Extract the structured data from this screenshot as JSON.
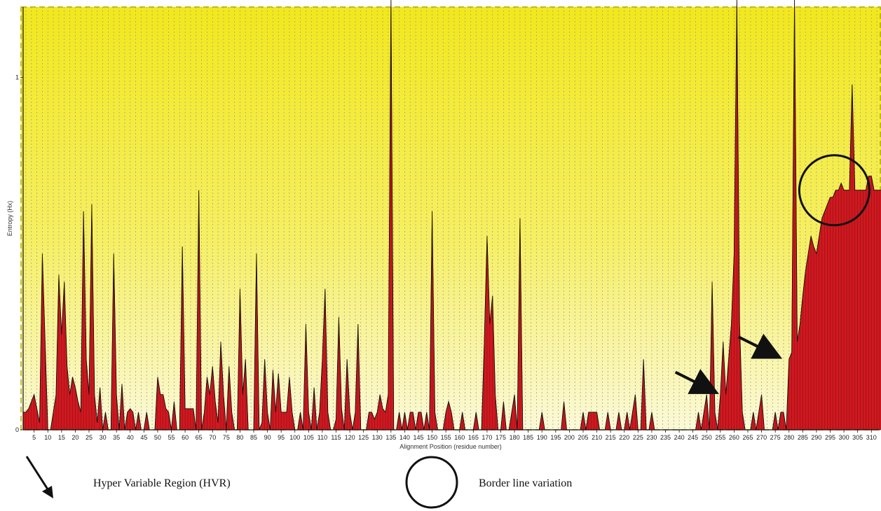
{
  "chart_data": {
    "type": "area",
    "title": "",
    "xlabel": "Alignment Position (residue number)",
    "ylabel": "Entropy (Hx)",
    "xlim": [
      1,
      313
    ],
    "ylim": [
      0,
      1.2
    ],
    "y_ticks": [
      "0",
      "1"
    ],
    "x_ticks": [
      "5",
      "10",
      "15",
      "20",
      "25",
      "30",
      "35",
      "40",
      "45",
      "50",
      "55",
      "60",
      "65",
      "70",
      "75",
      "80",
      "85",
      "90",
      "95",
      "100",
      "105",
      "110",
      "115",
      "120",
      "125",
      "130",
      "135",
      "140",
      "145",
      "150",
      "155",
      "160",
      "165",
      "170",
      "175",
      "180",
      "185",
      "190",
      "195",
      "200",
      "205",
      "210",
      "215",
      "220",
      "225",
      "230",
      "235",
      "240",
      "245",
      "250",
      "255",
      "260",
      "265",
      "270",
      "275",
      "280",
      "285",
      "290",
      "295",
      "300",
      "305",
      "310"
    ],
    "grid": "vertical dotted lines at every 2 positions",
    "background": "yellow-to-white vertical gradient",
    "fill_color": "#d01820",
    "series": [
      {
        "values": [
          0.05,
          0.05,
          0.06,
          0.08,
          0.1,
          0.06,
          0.02,
          0.5,
          0.25,
          0.0,
          0.0,
          0.05,
          0.1,
          0.44,
          0.27,
          0.42,
          0.18,
          0.1,
          0.15,
          0.12,
          0.08,
          0.05,
          0.62,
          0.2,
          0.1,
          0.64,
          0.1,
          0.02,
          0.12,
          0.0,
          0.05,
          0.0,
          0.0,
          0.5,
          0.1,
          0.0,
          0.13,
          0.0,
          0.05,
          0.06,
          0.05,
          0.0,
          0.05,
          0.0,
          0.0,
          0.05,
          0.0,
          0.0,
          0.0,
          0.15,
          0.1,
          0.1,
          0.06,
          0.05,
          0.0,
          0.08,
          0.0,
          0.0,
          0.52,
          0.06,
          0.06,
          0.06,
          0.06,
          0.0,
          0.68,
          0.0,
          0.05,
          0.15,
          0.1,
          0.18,
          0.08,
          0.02,
          0.25,
          0.1,
          0.0,
          0.18,
          0.05,
          0.0,
          0.0,
          0.4,
          0.1,
          0.2,
          0.0,
          0.0,
          0.0,
          0.5,
          0.0,
          0.02,
          0.2,
          0.05,
          0.0,
          0.17,
          0.05,
          0.16,
          0.05,
          0.05,
          0.05,
          0.15,
          0.05,
          0.0,
          0.0,
          0.05,
          0.0,
          0.3,
          0.05,
          0.0,
          0.12,
          0.0,
          0.05,
          0.2,
          0.4,
          0.05,
          0.0,
          0.0,
          0.03,
          0.32,
          0.06,
          0.0,
          0.2,
          0.05,
          0.0,
          0.05,
          0.3,
          0.0,
          0.0,
          0.0,
          0.05,
          0.05,
          0.03,
          0.05,
          0.1,
          0.06,
          0.05,
          0.1,
          1.22,
          0.0,
          0.0,
          0.05,
          0.0,
          0.05,
          0.0,
          0.05,
          0.05,
          0.0,
          0.05,
          0.05,
          0.0,
          0.05,
          0.0,
          0.62,
          0.05,
          0.0,
          0.0,
          0.0,
          0.05,
          0.08,
          0.05,
          0.0,
          0.0,
          0.0,
          0.05,
          0.0,
          0.0,
          0.0,
          0.0,
          0.05,
          0.0,
          0.0,
          0.25,
          0.55,
          0.3,
          0.38,
          0.1,
          0.0,
          0.0,
          0.08,
          0.0,
          0.0,
          0.05,
          0.1,
          0.0,
          0.6,
          0.0,
          0.0,
          0.0,
          0.0,
          0.0,
          0.0,
          0.0,
          0.05,
          0.0,
          0.0,
          0.0,
          0.0,
          0.0,
          0.0,
          0.0,
          0.08,
          0.0,
          0.0,
          0.0,
          0.0,
          0.0,
          0.0,
          0.05,
          0.0,
          0.05,
          0.05,
          0.05,
          0.05,
          0.0,
          0.0,
          0.0,
          0.05,
          0.0,
          0.0,
          0.0,
          0.05,
          0.0,
          0.0,
          0.05,
          0.0,
          0.05,
          0.1,
          0.0,
          0.0,
          0.2,
          0.0,
          0.0,
          0.05,
          0.0,
          0.0,
          0.0,
          0.0,
          0.0,
          0.0,
          0.0,
          0.0,
          0.0,
          0.0,
          0.0,
          0.0,
          0.0,
          0.0,
          0.0,
          0.0,
          0.05,
          0.0,
          0.05,
          0.1,
          0.0,
          0.42,
          0.05,
          0.0,
          0.1,
          0.25,
          0.1,
          0.2,
          0.3,
          0.5,
          1.22,
          0.3,
          0.05,
          0.0,
          0.0,
          0.0,
          0.05,
          0.0,
          0.05,
          0.1,
          0.0,
          0.0,
          0.0,
          0.0,
          0.05,
          0.0,
          0.05,
          0.05,
          0.0,
          0.2,
          0.22,
          1.22,
          0.25,
          0.3,
          0.38,
          0.45,
          0.5,
          0.55,
          0.52,
          0.5,
          0.55,
          0.6,
          0.62,
          0.64,
          0.66,
          0.66,
          0.68,
          0.68,
          0.7,
          0.68,
          0.68,
          0.68,
          0.98,
          0.68,
          0.68,
          0.68,
          0.68,
          0.68,
          0.72,
          0.72,
          0.68,
          0.68,
          0.68,
          0.68,
          0.68,
          0.68,
          0.68,
          0.68,
          0.68,
          0.68,
          0.68,
          0.68
        ]
      }
    ],
    "annotations": [
      {
        "type": "arrow",
        "target_x": 135
      },
      {
        "type": "arrow",
        "target_x": 257
      },
      {
        "type": "arrow",
        "target_x": 280
      },
      {
        "type": "circle",
        "target_x": 296
      }
    ]
  },
  "legend": {
    "hvr_label": "Hyper Variable Region (HVR)",
    "border_label": "Border line variation"
  }
}
